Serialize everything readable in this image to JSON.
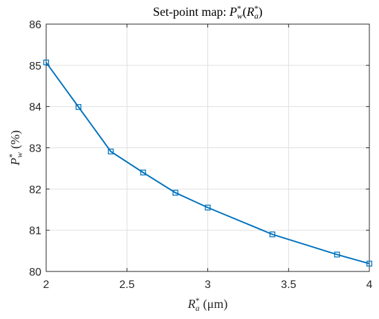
{
  "chart_data": {
    "type": "line",
    "title": "Set-point map: P*_w(R*_a)",
    "title_parts": {
      "prefix": "Set-point map: ",
      "main_symbol": "P",
      "main_sup": "*",
      "main_sub": "w",
      "arg_symbol": "R",
      "arg_sup": "*",
      "arg_sub": "a"
    },
    "xlabel": "R*_a (μm)",
    "xlabel_parts": {
      "symbol": "R",
      "sup": "*",
      "sub": "a",
      "unit": "(μm)"
    },
    "ylabel": "P*_w (%)",
    "ylabel_parts": {
      "symbol": "P",
      "sup": "*",
      "sub": "w",
      "unit": "(%)"
    },
    "xlim": [
      2,
      4
    ],
    "ylim": [
      80,
      86
    ],
    "xticks": [
      2,
      2.5,
      3,
      3.5,
      4
    ],
    "xtick_labels": [
      "2",
      "2.5",
      "3",
      "3.5",
      "4"
    ],
    "yticks": [
      80,
      81,
      82,
      83,
      84,
      85,
      86
    ],
    "ytick_labels": [
      "80",
      "81",
      "82",
      "83",
      "84",
      "85",
      "86"
    ],
    "grid": true,
    "series": [
      {
        "x": [
          2.0,
          2.2,
          2.4,
          2.6,
          2.8,
          3.0,
          3.4,
          3.8,
          4.0
        ],
        "y": [
          85.07,
          83.99,
          82.91,
          82.4,
          81.91,
          81.55,
          80.9,
          80.41,
          80.19
        ],
        "color": "#0072BD",
        "marker": "square"
      }
    ]
  }
}
